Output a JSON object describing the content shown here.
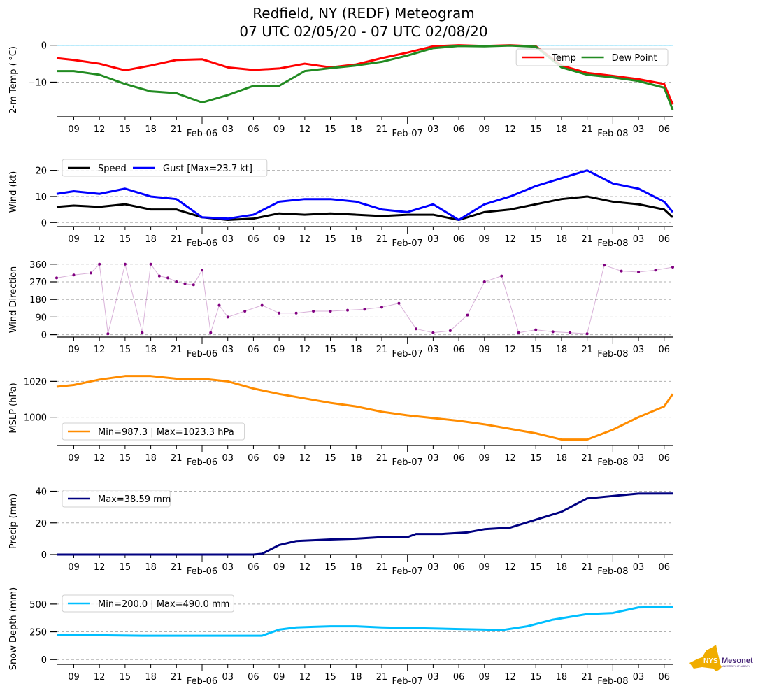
{
  "title_line1": "Redfield, NY (REDF) Meteogram",
  "title_line2": "07 UTC 02/05/20 - 07 UTC 02/08/20",
  "logo": {
    "text_main": "NYS",
    "text_brand": "Mesonet",
    "text_sub": "UNIVERSITY AT ALBANY",
    "color_state": "#f0ad00",
    "color_brand": "#4b2a7b"
  },
  "chart_data": [
    {
      "type": "line",
      "ylabel": "2-m Temp ( $^\\circ$C)",
      "ylabel_display": "2-m Temp ( °C)",
      "ylim": [
        -19,
        0.5
      ],
      "yticks": [
        0,
        -10
      ],
      "ytick_labels": [
        "0",
        "−10"
      ],
      "grid": true,
      "reference_line": {
        "value": 0,
        "color": "#00bfff"
      },
      "legend": "top-right",
      "x_hours": [
        0,
        2,
        5,
        8,
        11,
        14,
        17,
        20,
        23,
        26,
        29,
        32,
        35,
        38,
        41,
        44,
        47,
        50,
        53,
        56,
        59,
        62,
        65,
        68,
        71,
        72
      ],
      "series": [
        {
          "name": "Temp",
          "color": "#ff0000",
          "values": [
            -3.5,
            -4,
            -5,
            -6.8,
            -5.5,
            -4,
            -3.8,
            -6,
            -6.7,
            -6.3,
            -5,
            -6,
            -5.2,
            -3.5,
            -2,
            -0.3,
            0,
            -0.2,
            0,
            -0.3,
            -5.5,
            -7.5,
            -8.3,
            -9.2,
            -10.5,
            -16
          ]
        },
        {
          "name": "Dew Point",
          "color": "#228b22",
          "values": [
            -7,
            -7,
            -8,
            -10.5,
            -12.5,
            -13,
            -15.5,
            -13.5,
            -11,
            -11,
            -7,
            -6.2,
            -5.5,
            -4.5,
            -2.8,
            -0.8,
            -0.2,
            -0.3,
            -0.1,
            -0.4,
            -6,
            -8,
            -8.7,
            -9.7,
            -11.5,
            -17.5
          ]
        }
      ],
      "xtick_labels": [
        "09",
        "12",
        "15",
        "18",
        "21",
        "Feb-06",
        "03",
        "06",
        "09",
        "12",
        "15",
        "18",
        "21",
        "Feb-07",
        "03",
        "06",
        "09",
        "12",
        "15",
        "18",
        "21",
        "Feb-08",
        "03",
        "06"
      ]
    },
    {
      "type": "line",
      "ylabel": "Wind (kt)",
      "ylim": [
        -1,
        25
      ],
      "yticks": [
        0,
        10,
        20
      ],
      "ytick_labels": [
        "0",
        "10",
        "20"
      ],
      "grid": true,
      "legend": "top-left",
      "x_hours": [
        0,
        2,
        5,
        8,
        11,
        14,
        17,
        20,
        23,
        26,
        29,
        32,
        35,
        38,
        41,
        44,
        47,
        50,
        53,
        56,
        59,
        62,
        65,
        68,
        71,
        72
      ],
      "series": [
        {
          "name": "Speed",
          "color": "#000000",
          "values": [
            6,
            6.5,
            6,
            7,
            5,
            5,
            2,
            1,
            1.5,
            3.5,
            3,
            3.5,
            3,
            2.5,
            3,
            3,
            1,
            4,
            5,
            7,
            9,
            10,
            8,
            7,
            5,
            2
          ]
        },
        {
          "name": "Gust [Max=23.7 kt]",
          "color": "#0000ff",
          "values": [
            11,
            12,
            11,
            13,
            10,
            9,
            2,
            1.5,
            3,
            8,
            9,
            9,
            8,
            5,
            4,
            7,
            1,
            7,
            10,
            14,
            17,
            20,
            15,
            13,
            8,
            4
          ]
        }
      ],
      "xtick_labels": [
        "09",
        "12",
        "15",
        "18",
        "21",
        "Feb-06",
        "03",
        "06",
        "09",
        "12",
        "15",
        "18",
        "21",
        "Feb-07",
        "03",
        "06",
        "09",
        "12",
        "15",
        "18",
        "21",
        "Feb-08",
        "03",
        "06"
      ]
    },
    {
      "type": "scatter",
      "ylabel": "Wind Direction",
      "ylim": [
        -5,
        370
      ],
      "yticks": [
        0,
        90,
        180,
        270,
        360
      ],
      "ytick_labels": [
        "0",
        "90",
        "180",
        "270",
        "360"
      ],
      "grid": true,
      "x_hours": [
        0,
        2,
        4,
        5,
        6,
        8,
        10,
        11,
        12,
        13,
        14,
        15,
        16,
        17,
        18,
        19,
        20,
        22,
        24,
        26,
        28,
        30,
        32,
        34,
        36,
        38,
        40,
        42,
        44,
        46,
        48,
        50,
        52,
        54,
        56,
        58,
        60,
        62,
        64,
        66,
        68,
        70,
        72
      ],
      "series": [
        {
          "name": "Wind Direction",
          "color": "#800080",
          "values": [
            290,
            305,
            315,
            360,
            5,
            360,
            10,
            360,
            300,
            290,
            270,
            260,
            255,
            330,
            10,
            150,
            90,
            120,
            150,
            110,
            110,
            120,
            120,
            125,
            130,
            140,
            160,
            30,
            10,
            20,
            100,
            270,
            300,
            10,
            25,
            15,
            10,
            5,
            355,
            325,
            320,
            330,
            345
          ]
        }
      ],
      "xtick_labels": [
        "09",
        "12",
        "15",
        "18",
        "21",
        "Feb-06",
        "03",
        "06",
        "09",
        "12",
        "15",
        "18",
        "21",
        "Feb-07",
        "03",
        "06",
        "09",
        "12",
        "15",
        "18",
        "21",
        "Feb-08",
        "03",
        "06"
      ]
    },
    {
      "type": "line",
      "ylabel": "MSLP (hPa)",
      "ylim": [
        985,
        1026
      ],
      "yticks": [
        1000,
        1020
      ],
      "ytick_labels": [
        "1000",
        "1020"
      ],
      "grid": true,
      "legend": "bottom-left",
      "x_hours": [
        0,
        2,
        5,
        8,
        11,
        14,
        17,
        20,
        23,
        26,
        29,
        32,
        35,
        38,
        41,
        44,
        47,
        50,
        53,
        56,
        59,
        62,
        65,
        68,
        71,
        72
      ],
      "series": [
        {
          "name": "Min=987.3 | Max=1023.3 hPa",
          "color": "#ff8c00",
          "values": [
            1017,
            1018,
            1021,
            1023,
            1023,
            1021.5,
            1021.5,
            1020,
            1016,
            1013,
            1010.5,
            1008,
            1006,
            1003,
            1001,
            999.5,
            998,
            996,
            993.5,
            991,
            987.5,
            987.5,
            993,
            1000,
            1006,
            1013
          ]
        }
      ],
      "xtick_labels": [
        "09",
        "12",
        "15",
        "18",
        "21",
        "Feb-06",
        "03",
        "06",
        "09",
        "12",
        "15",
        "18",
        "21",
        "Feb-07",
        "03",
        "06",
        "09",
        "12",
        "15",
        "18",
        "21",
        "Feb-08",
        "03",
        "06"
      ]
    },
    {
      "type": "line",
      "ylabel": "Precip (mm)",
      "ylim": [
        0,
        42
      ],
      "yticks": [
        0,
        20,
        40
      ],
      "ytick_labels": [
        "0",
        "20",
        "40"
      ],
      "grid": true,
      "legend": "top-left",
      "x_hours": [
        0,
        5,
        10,
        15,
        20,
        23,
        24,
        26,
        28,
        30,
        32,
        35,
        38,
        41,
        42,
        45,
        48,
        50,
        53,
        56,
        59,
        62,
        65,
        68,
        72
      ],
      "series": [
        {
          "name": "Max=38.59 mm",
          "color": "#000080",
          "values": [
            0,
            0,
            0,
            0,
            0,
            0,
            0.5,
            6,
            8.5,
            9,
            9.5,
            10,
            11,
            11,
            13,
            13,
            14,
            16,
            17,
            22,
            27,
            35.5,
            37,
            38.5,
            38.6
          ]
        }
      ],
      "xtick_labels": [
        "09",
        "12",
        "15",
        "18",
        "21",
        "Feb-06",
        "03",
        "06",
        "09",
        "12",
        "15",
        "18",
        "21",
        "Feb-07",
        "03",
        "06",
        "09",
        "12",
        "15",
        "18",
        "21",
        "Feb-08",
        "03",
        "06"
      ]
    },
    {
      "type": "line",
      "ylabel": "Snow Depth (mm)",
      "ylim": [
        -30,
        600
      ],
      "yticks": [
        0,
        250,
        500
      ],
      "ytick_labels": [
        "0",
        "250",
        "500"
      ],
      "grid": true,
      "legend": "top-left",
      "x_hours": [
        0,
        5,
        10,
        15,
        20,
        23,
        24,
        26,
        28,
        30,
        32,
        35,
        38,
        41,
        44,
        47,
        50,
        52,
        55,
        58,
        62,
        65,
        68,
        72
      ],
      "series": [
        {
          "name": "Min=200.0 | Max=490.0 mm",
          "color": "#00bfff",
          "values": [
            220,
            220,
            215,
            215,
            215,
            215,
            215,
            270,
            290,
            295,
            300,
            300,
            290,
            285,
            280,
            275,
            270,
            265,
            300,
            360,
            410,
            420,
            470,
            475
          ]
        }
      ],
      "xtick_labels": [
        "09",
        "12",
        "15",
        "18",
        "21",
        "Feb-06",
        "03",
        "06",
        "09",
        "12",
        "15",
        "18",
        "21",
        "Feb-07",
        "03",
        "06",
        "09",
        "12",
        "15",
        "18",
        "21",
        "Feb-08",
        "03",
        "06"
      ]
    }
  ]
}
